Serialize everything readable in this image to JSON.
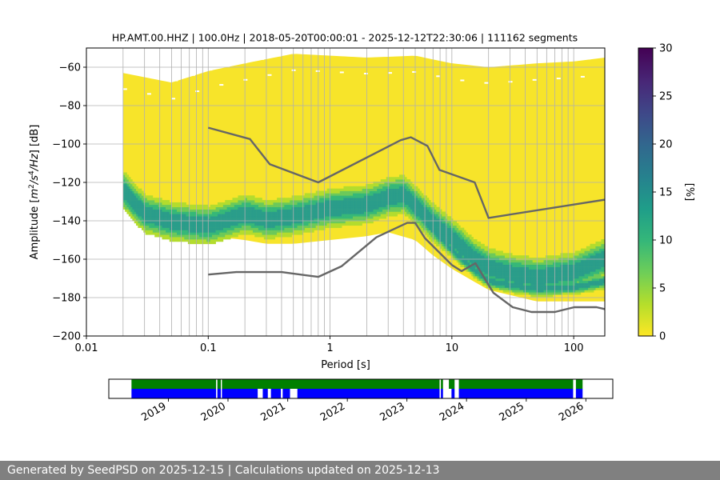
{
  "chart_data": [
    {
      "type": "heatmap",
      "title": "HP.AMT.00.HHZ | 100.0Hz | 2018-05-20T00:00:01 - 2025-12-12T22:30:06 | 111162 segments",
      "xlabel": "Period [s]",
      "ylabel": "Amplitude [m²/s⁴/Hz] [dB]",
      "ylabel_parts": {
        "pre": "Amplitude [",
        "m": "m",
        "two": "2",
        "s": "/s",
        "four": "4",
        "hz": "/Hz",
        "post": "] [dB]"
      },
      "xscale": "log",
      "xlim": [
        0.01,
        180
      ],
      "ylim": [
        -200,
        -50
      ],
      "xticks": [
        0.01,
        0.1,
        1,
        10,
        100
      ],
      "xtick_labels": [
        "0.01",
        "0.1",
        "1",
        "10",
        "100"
      ],
      "yticks": [
        -200,
        -180,
        -160,
        -140,
        -120,
        -100,
        -80,
        -60
      ],
      "ytick_labels": [
        "−200",
        "−180",
        "−160",
        "−140",
        "−120",
        "−100",
        "−80",
        "−60"
      ],
      "grid": true,
      "colorbar": {
        "label": "[%]",
        "range": [
          0,
          30
        ],
        "ticks": [
          "0",
          "5",
          "10",
          "15",
          "20",
          "25",
          "30"
        ],
        "colormap": "viridis_r"
      },
      "psd_envelope": {
        "period_min": 0.02,
        "upper": [
          [
            0.02,
            -63
          ],
          [
            0.05,
            -68
          ],
          [
            0.1,
            -62
          ],
          [
            0.2,
            -58
          ],
          [
            0.5,
            -53
          ],
          [
            1,
            -54
          ],
          [
            2,
            -55
          ],
          [
            5,
            -54
          ],
          [
            10,
            -58
          ],
          [
            20,
            -60
          ],
          [
            50,
            -58
          ],
          [
            100,
            -57
          ],
          [
            180,
            -55
          ]
        ],
        "lower": [
          [
            0.02,
            -130
          ],
          [
            0.03,
            -140
          ],
          [
            0.05,
            -145
          ],
          [
            0.1,
            -148
          ],
          [
            0.2,
            -150
          ],
          [
            0.3,
            -152
          ],
          [
            0.5,
            -152
          ],
          [
            1,
            -150
          ],
          [
            2,
            -148
          ],
          [
            3,
            -146
          ],
          [
            5,
            -150
          ],
          [
            7,
            -158
          ],
          [
            10,
            -165
          ],
          [
            20,
            -176
          ],
          [
            50,
            -182
          ],
          [
            100,
            -182
          ],
          [
            180,
            -182
          ]
        ],
        "mode": [
          [
            0.02,
            -125
          ],
          [
            0.025,
            -132
          ],
          [
            0.03,
            -137
          ],
          [
            0.05,
            -141
          ],
          [
            0.1,
            -143
          ],
          [
            0.2,
            -137
          ],
          [
            0.3,
            -140
          ],
          [
            0.5,
            -138
          ],
          [
            1,
            -134
          ],
          [
            2,
            -132
          ],
          [
            3,
            -128
          ],
          [
            4,
            -127
          ],
          [
            5,
            -133
          ],
          [
            7,
            -142
          ],
          [
            10,
            -150
          ],
          [
            15,
            -160
          ],
          [
            20,
            -165
          ],
          [
            30,
            -168
          ],
          [
            50,
            -170
          ],
          [
            100,
            -167
          ],
          [
            180,
            -160
          ]
        ],
        "lower_line": [
          [
            0.02,
            -128
          ],
          [
            0.025,
            -133
          ],
          [
            0.03,
            -138
          ],
          [
            0.05,
            -142
          ],
          [
            0.1,
            -144
          ],
          [
            0.2,
            -139
          ],
          [
            0.3,
            -142
          ],
          [
            0.5,
            -140
          ],
          [
            1,
            -136
          ],
          [
            2,
            -134
          ],
          [
            3,
            -130
          ],
          [
            4,
            -129
          ],
          [
            5,
            -136
          ],
          [
            7,
            -146
          ],
          [
            10,
            -156
          ],
          [
            15,
            -166
          ],
          [
            20,
            -172
          ],
          [
            30,
            -174
          ],
          [
            50,
            -176
          ],
          [
            100,
            -175
          ],
          [
            180,
            -172
          ]
        ]
      },
      "series": [
        {
          "name": "NHNM",
          "color": "#666666",
          "points": [
            [
              0.1,
              -91.5
            ],
            [
              0.22,
              -97.4
            ],
            [
              0.32,
              -110.5
            ],
            [
              0.8,
              -120
            ],
            [
              3.8,
              -98
            ],
            [
              4.6,
              -96.5
            ],
            [
              6.3,
              -101
            ],
            [
              7.9,
              -113.5
            ],
            [
              15.4,
              -120
            ],
            [
              20,
              -138.5
            ],
            [
              180,
              -129
            ]
          ]
        },
        {
          "name": "NLNM",
          "color": "#666666",
          "points": [
            [
              0.1,
              -168
            ],
            [
              0.17,
              -166.7
            ],
            [
              0.4,
              -166.7
            ],
            [
              0.8,
              -169.2
            ],
            [
              1.24,
              -163.7
            ],
            [
              2.4,
              -148.6
            ],
            [
              4.3,
              -141.1
            ],
            [
              5,
              -141.1
            ],
            [
              6,
              -149
            ],
            [
              10,
              -163
            ],
            [
              12,
              -166.2
            ],
            [
              15.6,
              -162.1
            ],
            [
              21.9,
              -177.5
            ],
            [
              31.6,
              -185
            ],
            [
              45,
              -187.5
            ],
            [
              70,
              -187.5
            ],
            [
              101,
              -185
            ],
            [
              154,
              -185
            ],
            [
              180,
              -186
            ]
          ]
        }
      ]
    },
    {
      "type": "bar",
      "title": "",
      "xlabel": "",
      "ylabel": "",
      "xlim": [
        "2018-01-01",
        "2026-06-15"
      ],
      "xticks": [
        "2019-01-01",
        "2020-01-01",
        "2021-01-01",
        "2022-01-01",
        "2023-01-01",
        "2024-01-01",
        "2025-01-01",
        "2026-01-01"
      ],
      "xtick_labels": [
        "2019",
        "2020",
        "2021",
        "2022",
        "2023",
        "2024",
        "2025",
        "2026"
      ],
      "series": [
        {
          "name": "",
          "color": "#008000",
          "intervals": [
            [
              "2018-05-20",
              "2019-10-20"
            ],
            [
              "2019-10-28",
              "2019-11-18"
            ],
            [
              "2019-11-25",
              "2023-07-20"
            ],
            [
              "2023-07-28",
              "2023-08-10"
            ],
            [
              "2023-09-15",
              "2023-10-20"
            ],
            [
              "2023-11-15",
              "2025-10-15"
            ],
            [
              "2025-11-01",
              "2025-12-12"
            ]
          ]
        },
        {
          "name": "",
          "color": "#0000ff",
          "intervals": [
            [
              "2018-05-20",
              "2019-10-20"
            ],
            [
              "2019-10-28",
              "2019-11-18"
            ],
            [
              "2019-11-25",
              "2020-07-01"
            ],
            [
              "2020-08-01",
              "2020-09-01"
            ],
            [
              "2020-09-20",
              "2020-11-20"
            ],
            [
              "2020-12-01",
              "2021-01-15"
            ],
            [
              "2021-03-01",
              "2023-07-20"
            ],
            [
              "2023-07-28",
              "2023-08-10"
            ],
            [
              "2023-10-01",
              "2023-10-20"
            ],
            [
              "2023-11-15",
              "2025-10-15"
            ],
            [
              "2025-11-01",
              "2025-12-12"
            ]
          ]
        }
      ]
    }
  ],
  "footer": {
    "text": "Generated by SeedPSD on 2025-12-15 | Calculations updated on 2025-12-13"
  }
}
